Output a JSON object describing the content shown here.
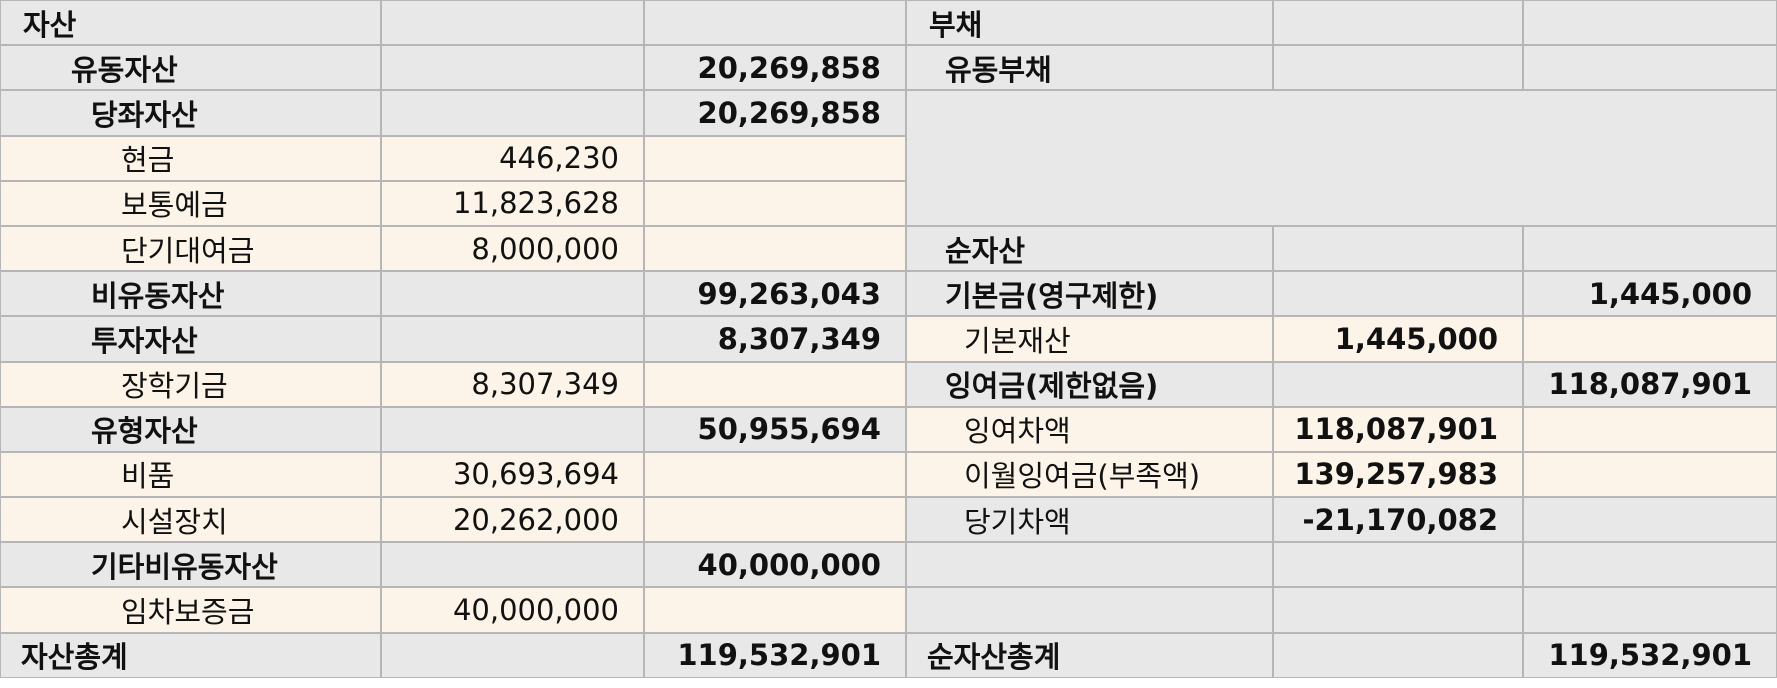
{
  "assets": {
    "header": "자산",
    "current": {
      "label": "유동자산",
      "total": "20,269,858"
    },
    "quick": {
      "label": "당좌자산",
      "total": "20,269,858"
    },
    "cash": {
      "label": "현금",
      "value": "446,230"
    },
    "ordinary_deposit": {
      "label": "보통예금",
      "value": "11,823,628"
    },
    "short_term_loan": {
      "label": "단기대여금",
      "value": "8,000,000"
    },
    "noncurrent": {
      "label": "비유동자산",
      "total": "99,263,043"
    },
    "investment": {
      "label": "투자자산",
      "total": "8,307,349"
    },
    "scholarship_fund": {
      "label": "장학기금",
      "value": "8,307,349"
    },
    "tangible": {
      "label": "유형자산",
      "total": "50,955,694"
    },
    "fixtures": {
      "label": "비품",
      "value": "30,693,694"
    },
    "facilities": {
      "label": "시설장치",
      "value": "20,262,000"
    },
    "other_noncurrent": {
      "label": "기타비유동자산",
      "total": "40,000,000"
    },
    "lease_deposit": {
      "label": "임차보증금",
      "value": "40,000,000"
    },
    "total": {
      "label": "자산총계",
      "value": "119,532,901"
    }
  },
  "liabilities": {
    "header": "부채",
    "current": {
      "label": "유동부채"
    }
  },
  "net_assets": {
    "header": "순자산",
    "basic_fund": {
      "label": "기본금(영구제한)",
      "total": "1,445,000"
    },
    "basic_property": {
      "label": "기본재산",
      "value": "1,445,000"
    },
    "surplus": {
      "label": "잉여금(제한없음)",
      "total": "118,087,901"
    },
    "surplus_diff": {
      "label": "잉여차액",
      "value": "118,087,901"
    },
    "carried_surplus": {
      "label": "이월잉여금(부족액)",
      "value": "139,257,983"
    },
    "current_diff": {
      "label": "당기차액",
      "value": "-21,170,082"
    },
    "total": {
      "label": "순자산총계",
      "value": "119,532,901"
    }
  },
  "colors": {
    "header_fill": "#e8e8e8",
    "detail_fill": "#fcf4e8",
    "grid_line": "#b6b6b6",
    "text": "#111111"
  }
}
